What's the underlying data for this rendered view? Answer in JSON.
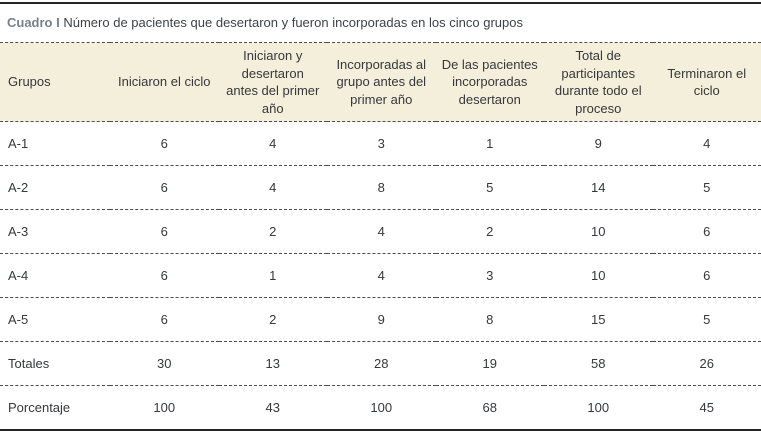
{
  "colors": {
    "header_background": "#f4efdb",
    "caption_label": "#75818e",
    "rule": "#232527",
    "dashed_border": "#4d4d4d",
    "text": "#35383c"
  },
  "caption": {
    "label": "Cuadro I",
    "text": "Número de pacientes que desertaron y fueron incorporadas en los cinco grupos"
  },
  "table": {
    "columns": [
      "Grupos",
      "Iniciaron el ciclo",
      "Iniciaron y desertaron antes del primer año",
      "Incorporadas al grupo antes del primer año",
      "De las pacientes incorporadas desertaron",
      "Total de participantes durante todo el proceso",
      "Terminaron el ciclo"
    ],
    "rows": [
      {
        "label": "A-1",
        "values": [
          "6",
          "4",
          "3",
          "1",
          "9",
          "4"
        ]
      },
      {
        "label": "A-2",
        "values": [
          "6",
          "4",
          "8",
          "5",
          "14",
          "5"
        ]
      },
      {
        "label": "A-3",
        "values": [
          "6",
          "2",
          "4",
          "2",
          "10",
          "6"
        ]
      },
      {
        "label": "A-4",
        "values": [
          "6",
          "1",
          "4",
          "3",
          "10",
          "6"
        ]
      },
      {
        "label": "A-5",
        "values": [
          "6",
          "2",
          "9",
          "8",
          "15",
          "5"
        ]
      },
      {
        "label": "Totales",
        "values": [
          "30",
          "13",
          "28",
          "19",
          "58",
          "26"
        ]
      },
      {
        "label": "Porcentaje",
        "values": [
          "100",
          "43",
          "100",
          "68",
          "100",
          "45"
        ]
      }
    ]
  }
}
